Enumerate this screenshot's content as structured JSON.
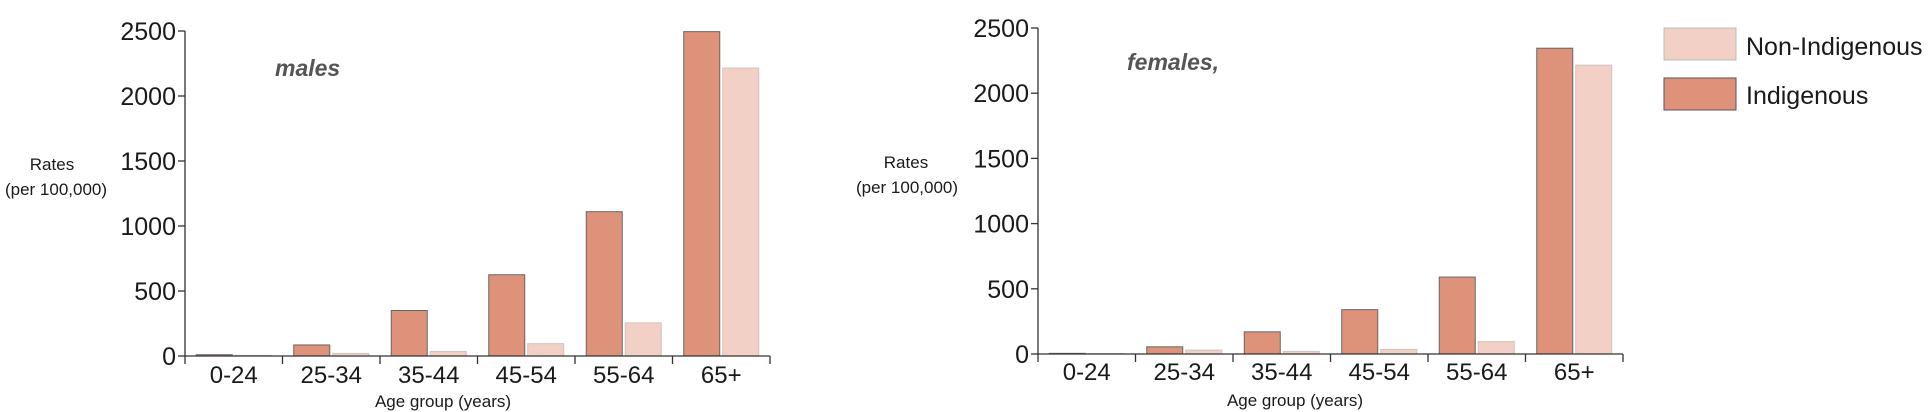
{
  "chart_data": [
    {
      "type": "bar",
      "title": "males",
      "xlabel": "Age group (years)",
      "ylabel": [
        "Rates",
        "(per 100,000)"
      ],
      "categories": [
        "0-24",
        "25-34",
        "35-44",
        "45-54",
        "55-64",
        "65+"
      ],
      "ylim": [
        0,
        2500
      ],
      "yticks": [
        0,
        500,
        1000,
        1500,
        2000,
        2500
      ],
      "series": [
        {
          "name": "Indigenous",
          "color": "#dd9279",
          "values": [
            10,
            85,
            350,
            625,
            1110,
            2495
          ]
        },
        {
          "name": "Non-Indigenous",
          "color": "#f2d0c5",
          "values": [
            5,
            20,
            35,
            95,
            255,
            2215
          ]
        }
      ]
    },
    {
      "type": "bar",
      "title": "females,",
      "xlabel": "Age group (years)",
      "ylabel": [
        "Rates",
        "(per 100,000)"
      ],
      "categories": [
        "0-24",
        "25-34",
        "35-44",
        "45-54",
        "55-64",
        "65+"
      ],
      "ylim": [
        0,
        2500
      ],
      "yticks": [
        0,
        500,
        1000,
        1500,
        2000,
        2500
      ],
      "series": [
        {
          "name": "Indigenous",
          "color": "#dd9279",
          "values": [
            5,
            55,
            170,
            340,
            590,
            2345
          ]
        },
        {
          "name": "Non-Indigenous",
          "color": "#f2d0c5",
          "values": [
            3,
            30,
            20,
            35,
            95,
            2215
          ]
        }
      ]
    }
  ],
  "legend": {
    "items": [
      {
        "label": "Non-Indigenous",
        "color": "#f2d0c5"
      },
      {
        "label": "Indigenous",
        "color": "#dd9279"
      }
    ]
  }
}
